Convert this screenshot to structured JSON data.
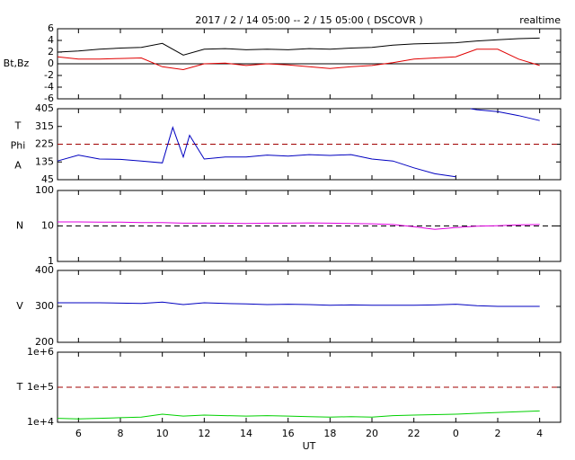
{
  "chart_data": [
    {
      "type": "line",
      "title": "2017 / 2 / 14  05:00 -- 2 / 15  05:00 ( DSCOVR )",
      "subtitle": "realtime",
      "ylabel": "Bt,Bz",
      "x": [
        5,
        6,
        7,
        8,
        9,
        10,
        11,
        12,
        13,
        14,
        15,
        16,
        17,
        18,
        19,
        20,
        21,
        22,
        23,
        24,
        25,
        26,
        27,
        28
      ],
      "series": [
        {
          "color": "#000000",
          "values": [
            2,
            2.2,
            2.5,
            2.7,
            2.8,
            3.5,
            1.5,
            2.5,
            2.6,
            2.4,
            2.5,
            2.4,
            2.6,
            2.5,
            2.7,
            2.8,
            3.2,
            3.4,
            3.5,
            3.6,
            3.9,
            4.1,
            4.3,
            4.4
          ]
        },
        {
          "color": "#e00000",
          "values": [
            1.2,
            0.8,
            0.8,
            0.9,
            1.0,
            -0.5,
            -1,
            0,
            0.1,
            -0.3,
            0,
            -0.2,
            -0.5,
            -0.8,
            -0.5,
            -0.3,
            0.2,
            0.8,
            1,
            1.2,
            2.5,
            2.5,
            0.8,
            -0.3
          ]
        }
      ],
      "xlim": [
        5,
        29
      ],
      "ylim": [
        -6,
        6
      ],
      "yticks": [
        -6,
        -4,
        -2,
        0,
        2,
        4,
        6
      ],
      "hline": {
        "value": 0,
        "color": "#000000",
        "dash": false
      }
    },
    {
      "type": "line",
      "ylabel": [
        "T",
        "Phi",
        "A"
      ],
      "x": [
        5,
        6,
        7,
        8,
        9,
        10,
        10.5,
        11,
        11.3,
        12,
        13,
        14,
        15,
        16,
        17,
        18,
        19,
        20,
        21,
        22,
        23,
        24,
        24.4,
        24.7,
        25,
        26,
        27,
        28
      ],
      "series": [
        {
          "color": "#0000c0",
          "values": [
            140,
            170,
            150,
            148,
            140,
            130,
            310,
            160,
            270,
            150,
            160,
            160,
            170,
            165,
            172,
            168,
            172,
            150,
            140,
            105,
            75,
            60,
            null,
            405,
            400,
            390,
            370,
            345
          ]
        }
      ],
      "xlim": [
        5,
        29
      ],
      "ylim": [
        45,
        405
      ],
      "yticks": [
        45,
        135,
        225,
        315,
        405
      ],
      "hline": {
        "value": 225,
        "color": "#a00000",
        "dash": true
      }
    },
    {
      "type": "line",
      "ylabel": "N",
      "log_scale": true,
      "x": [
        5,
        6,
        7,
        8,
        9,
        10,
        11,
        12,
        13,
        14,
        15,
        16,
        17,
        18,
        19,
        20,
        21,
        22,
        23,
        24,
        25,
        26,
        27,
        28
      ],
      "series": [
        {
          "color": "#e000e0",
          "values": [
            13,
            13,
            12.8,
            12.8,
            12.5,
            12.5,
            12,
            12,
            12,
            11.8,
            12,
            12,
            12.2,
            12,
            11.8,
            11.5,
            11,
            9.5,
            8,
            9,
            9.8,
            10.2,
            10.8,
            11
          ]
        }
      ],
      "xlim": [
        5,
        29
      ],
      "ylim": [
        1,
        100
      ],
      "yticks": [
        1,
        10,
        100
      ],
      "hline": {
        "value": 10,
        "color": "#000000",
        "dash": true
      }
    },
    {
      "type": "line",
      "ylabel": "V",
      "x": [
        5,
        6,
        7,
        8,
        9,
        10,
        11,
        12,
        13,
        14,
        15,
        16,
        17,
        18,
        19,
        20,
        21,
        22,
        23,
        24,
        25,
        26,
        27,
        28
      ],
      "series": [
        {
          "color": "#0000c0",
          "values": [
            310,
            310,
            310,
            309,
            308,
            312,
            305,
            310,
            308,
            307,
            305,
            306,
            305,
            303,
            304,
            303,
            303,
            303,
            304,
            306,
            302,
            300,
            300,
            300
          ]
        }
      ],
      "xlim": [
        5,
        29
      ],
      "ylim": [
        200,
        400
      ],
      "yticks": [
        200,
        300,
        400
      ]
    },
    {
      "type": "line",
      "ylabel": "T",
      "log_scale": true,
      "xlabel": "UT",
      "x": [
        5,
        6,
        7,
        8,
        9,
        10,
        11,
        12,
        13,
        14,
        15,
        16,
        17,
        18,
        19,
        20,
        21,
        22,
        23,
        24,
        25,
        26,
        27,
        28
      ],
      "series": [
        {
          "color": "#00d000",
          "values": [
            13000,
            12500,
            13000,
            13500,
            14000,
            17000,
            15000,
            16000,
            15500,
            15000,
            15500,
            15000,
            14500,
            14000,
            14500,
            14000,
            15500,
            16000,
            16500,
            17000,
            18000,
            19000,
            20000,
            21000
          ]
        }
      ],
      "xlim": [
        5,
        29
      ],
      "ylim": [
        10000,
        1000000
      ],
      "yticks": [
        {
          "value": 10000,
          "label": "1e+4"
        },
        {
          "value": 100000,
          "label": "1e+5"
        },
        {
          "value": 1000000,
          "label": "1e+6"
        }
      ],
      "xticks": [
        6,
        8,
        10,
        12,
        14,
        16,
        18,
        20,
        22,
        {
          "value": 24,
          "label": "0"
        },
        {
          "value": 26,
          "label": "2"
        },
        {
          "value": 28,
          "label": "4"
        }
      ],
      "hline": {
        "value": 100000,
        "color": "#a00000",
        "dash": true
      }
    }
  ]
}
